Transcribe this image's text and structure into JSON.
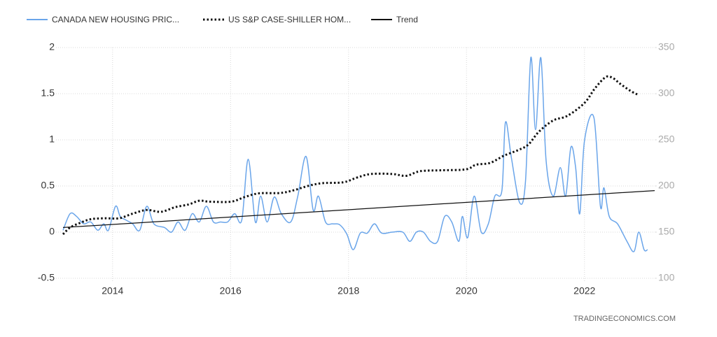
{
  "chart_data": {
    "type": "line",
    "legend": "top-left",
    "grid": true,
    "watermark": "TRADINGECONOMICS.COM",
    "xlim": [
      2013.16,
      2023.19
    ],
    "xticks": [
      2014,
      2016,
      2018,
      2020,
      2022
    ],
    "ylim": [
      -0.5,
      2
    ],
    "yticks": [
      -0.5,
      0,
      0.5,
      1,
      1.5,
      2
    ],
    "y2lim": [
      100,
      350
    ],
    "y2ticks": [
      100,
      150,
      200,
      250,
      300,
      350
    ],
    "series": [
      {
        "name": "CANADA NEW HOUSING PRIC...",
        "color": "#6aa5ea",
        "style": "solid",
        "x": [
          2013.16,
          2013.28,
          2013.39,
          2013.51,
          2013.63,
          2013.75,
          2013.85,
          2013.93,
          2014.05,
          2014.13,
          2014.23,
          2014.34,
          2014.46,
          2014.58,
          2014.7,
          2014.88,
          2015.0,
          2015.11,
          2015.23,
          2015.35,
          2015.47,
          2015.59,
          2015.71,
          2015.83,
          2015.95,
          2016.07,
          2016.19,
          2016.3,
          2016.42,
          2016.51,
          2016.62,
          2016.74,
          2016.86,
          2017.02,
          2017.14,
          2017.28,
          2017.4,
          2017.49,
          2017.61,
          2017.73,
          2017.85,
          2017.97,
          2018.08,
          2018.2,
          2018.32,
          2018.44,
          2018.56,
          2018.74,
          2018.92,
          2019.04,
          2019.15,
          2019.27,
          2019.39,
          2019.51,
          2019.63,
          2019.75,
          2019.87,
          2019.93,
          2020.02,
          2020.13,
          2020.25,
          2020.37,
          2020.48,
          2020.6,
          2020.66,
          2020.76,
          2020.9,
          2021.0,
          2021.09,
          2021.17,
          2021.26,
          2021.35,
          2021.47,
          2021.59,
          2021.68,
          2021.77,
          2021.85,
          2021.92,
          2022.0,
          2022.16,
          2022.27,
          2022.33,
          2022.42,
          2022.56,
          2022.72,
          2022.84,
          2022.92,
          2023.01,
          2023.07
        ],
        "values": [
          0.02,
          0.2,
          0.17,
          0.09,
          0.11,
          0.02,
          0.09,
          0.02,
          0.28,
          0.17,
          0.13,
          0.09,
          0.02,
          0.28,
          0.09,
          0.05,
          0,
          0.11,
          0.02,
          0.2,
          0.11,
          0.28,
          0.11,
          0.11,
          0.11,
          0.2,
          0.13,
          0.79,
          0.11,
          0.39,
          0.11,
          0.38,
          0.2,
          0.11,
          0.39,
          0.82,
          0.24,
          0.39,
          0.11,
          0.09,
          0.08,
          -0.02,
          -0.19,
          -0.01,
          -0.01,
          0.09,
          -0.01,
          0,
          0,
          -0.1,
          0,
          0,
          -0.1,
          -0.1,
          0.17,
          0.11,
          -0.1,
          0.17,
          -0.06,
          0.39,
          0,
          0.09,
          0.39,
          0.45,
          1.19,
          0.81,
          0.32,
          0.55,
          1.89,
          1.11,
          1.89,
          0.77,
          0.39,
          0.7,
          0.39,
          0.92,
          0.7,
          0.2,
          0.99,
          1.24,
          0.28,
          0.48,
          0.17,
          0.09,
          -0.1,
          -0.21,
          0,
          -0.19,
          -0.19
        ]
      },
      {
        "name": "US S&P CASE-SHILLER HOM...",
        "color": "#111111",
        "style": "dotted",
        "axis": "y2",
        "x": [
          2013.16,
          2013.28,
          2013.45,
          2013.63,
          2013.87,
          2014.11,
          2014.34,
          2014.58,
          2014.82,
          2015.06,
          2015.29,
          2015.47,
          2015.65,
          2016.01,
          2016.24,
          2016.48,
          2016.84,
          2017.08,
          2017.31,
          2017.55,
          2017.91,
          2018.14,
          2018.38,
          2018.74,
          2018.98,
          2019.21,
          2019.57,
          2019.99,
          2020.16,
          2020.4,
          2020.64,
          2020.88,
          2021.05,
          2021.23,
          2021.47,
          2021.71,
          2022.0,
          2022.18,
          2022.36,
          2022.48,
          2022.6,
          2022.78,
          2022.92
        ],
        "values": [
          147.7,
          155,
          160,
          164,
          165,
          165,
          170,
          174,
          172,
          177,
          180,
          184,
          183,
          183,
          188,
          192,
          192.4,
          195.5,
          200,
          203,
          204,
          209,
          213,
          213,
          211,
          216,
          217,
          218,
          223,
          225,
          233,
          239,
          245,
          259,
          271,
          276,
          290,
          306,
          318,
          317,
          311,
          303,
          298.5
        ]
      },
      {
        "name": "Trend",
        "color": "#111111",
        "style": "solid",
        "x": [
          2013.16,
          2023.19
        ],
        "values": [
          0.05,
          0.45
        ]
      }
    ]
  }
}
